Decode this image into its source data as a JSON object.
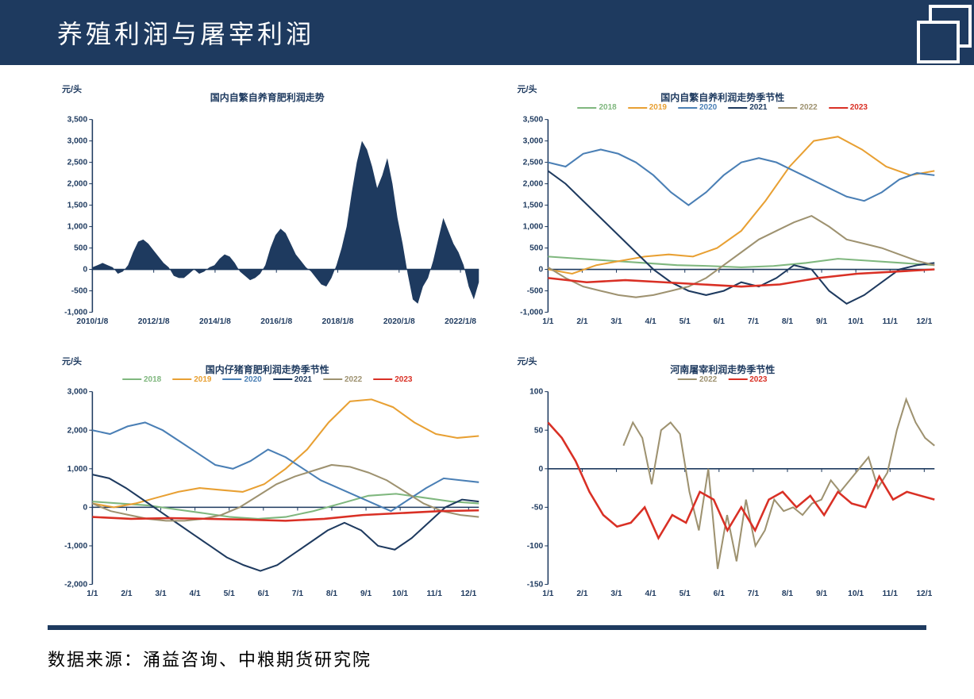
{
  "header": {
    "title": "养殖利润与屠宰利润"
  },
  "footer": {
    "source": "数据来源：涌益咨询、中粮期货研究院"
  },
  "colors": {
    "navy": "#1e3a5f",
    "y2018": "#7fb77e",
    "y2019": "#e8a033",
    "y2020": "#4a7fb5",
    "y2021": "#1e3a5f",
    "y2022": "#9e9270",
    "y2023": "#d93025"
  },
  "chart1": {
    "title": "国内自繁自养育肥利润走势",
    "ylabel": "元/头",
    "ylim": [
      -1000,
      3500
    ],
    "yticks": [
      -1000,
      -500,
      0,
      500,
      1000,
      1500,
      2000,
      2500,
      3000,
      3500
    ],
    "xlabels": [
      "2010/1/8",
      "2012/1/8",
      "2014/1/8",
      "2016/1/8",
      "2018/1/8",
      "2020/1/8",
      "2022/1/8"
    ],
    "type": "area",
    "color": "#1e3a5f",
    "data": [
      50,
      100,
      150,
      100,
      50,
      -100,
      -50,
      100,
      400,
      650,
      700,
      600,
      450,
      300,
      150,
      50,
      -150,
      -200,
      -200,
      -100,
      0,
      -100,
      -50,
      50,
      100,
      250,
      350,
      300,
      150,
      -50,
      -150,
      -250,
      -200,
      -100,
      100,
      500,
      800,
      950,
      850,
      600,
      350,
      200,
      50,
      -50,
      -200,
      -350,
      -400,
      -200,
      100,
      500,
      1000,
      1800,
      2500,
      3000,
      2800,
      2400,
      1900,
      2200,
      2600,
      2000,
      1200,
      600,
      -100,
      -700,
      -800,
      -400,
      -200,
      200,
      700,
      1200,
      900,
      600,
      400,
      100,
      -400,
      -700,
      -300
    ]
  },
  "chart2": {
    "title": "国内自繁自养利润走势季节性",
    "ylabel": "元/头",
    "ylim": [
      -1000,
      3500
    ],
    "yticks": [
      -1000,
      -500,
      0,
      500,
      1000,
      1500,
      2000,
      2500,
      3000,
      3500
    ],
    "xlabels": [
      "1/1",
      "2/1",
      "3/1",
      "4/1",
      "5/1",
      "6/1",
      "7/1",
      "8/1",
      "9/1",
      "10/1",
      "11/1",
      "12/1"
    ],
    "type": "line",
    "legend": [
      "2018",
      "2019",
      "2020",
      "2021",
      "2022",
      "2023"
    ],
    "series": {
      "y2018": [
        300,
        250,
        200,
        150,
        100,
        80,
        50,
        80,
        150,
        250,
        200,
        150,
        100
      ],
      "y2019": [
        0,
        -100,
        100,
        200,
        300,
        350,
        300,
        500,
        900,
        1600,
        2400,
        3000,
        3100,
        2800,
        2400,
        2200,
        2300
      ],
      "y2020": [
        2500,
        2400,
        2700,
        2800,
        2700,
        2500,
        2200,
        1800,
        1500,
        1800,
        2200,
        2500,
        2600,
        2500,
        2300,
        2100,
        1900,
        1700,
        1600,
        1800,
        2100,
        2250,
        2200
      ],
      "y2021": [
        2300,
        2000,
        1600,
        1200,
        800,
        400,
        0,
        -300,
        -500,
        -600,
        -500,
        -300,
        -400,
        -200,
        100,
        0,
        -500,
        -800,
        -600,
        -300,
        0,
        100,
        150
      ],
      "y2022": [
        50,
        -200,
        -400,
        -500,
        -600,
        -650,
        -600,
        -500,
        -400,
        -200,
        100,
        400,
        700,
        900,
        1100,
        1250,
        1000,
        700,
        600,
        500,
        350,
        200,
        100
      ],
      "y2023": [
        -200,
        -300,
        -250,
        -300,
        -350,
        -400,
        -350,
        -200,
        -100,
        -50,
        0
      ]
    }
  },
  "chart3": {
    "title": "国内仔猪育肥利润走势季节性",
    "ylabel": "元/头",
    "ylim": [
      -2000,
      3000
    ],
    "yticks": [
      -2000,
      -1000,
      0,
      1000,
      2000,
      3000
    ],
    "xlabels": [
      "1/1",
      "2/1",
      "3/1",
      "4/1",
      "5/1",
      "6/1",
      "7/1",
      "8/1",
      "9/1",
      "10/1",
      "11/1",
      "12/1"
    ],
    "type": "line",
    "legend": [
      "2018",
      "2019",
      "2020",
      "2021",
      "2022",
      "2023"
    ],
    "series": {
      "y2018": [
        150,
        100,
        50,
        -50,
        -150,
        -250,
        -300,
        -250,
        -100,
        100,
        300,
        350,
        250,
        150,
        100
      ],
      "y2019": [
        100,
        0,
        100,
        250,
        400,
        500,
        450,
        400,
        600,
        1000,
        1500,
        2200,
        2750,
        2800,
        2600,
        2200,
        1900,
        1800,
        1850
      ],
      "y2020": [
        2000,
        1900,
        2100,
        2200,
        2000,
        1700,
        1400,
        1100,
        1000,
        1200,
        1500,
        1300,
        1000,
        700,
        500,
        300,
        100,
        -100,
        200,
        500,
        750,
        700,
        650
      ],
      "y2021": [
        850,
        750,
        500,
        200,
        -100,
        -400,
        -700,
        -1000,
        -1300,
        -1500,
        -1650,
        -1500,
        -1200,
        -900,
        -600,
        -400,
        -600,
        -1000,
        -1100,
        -800,
        -400,
        0,
        200,
        150
      ],
      "y2022": [
        100,
        -100,
        -200,
        -300,
        -350,
        -350,
        -300,
        -200,
        0,
        300,
        600,
        800,
        950,
        1100,
        1050,
        900,
        700,
        400,
        100,
        -100,
        -200,
        -250
      ],
      "y2023": [
        -250,
        -300,
        -280,
        -300,
        -320,
        -350,
        -300,
        -200,
        -150,
        -100,
        -80
      ]
    }
  },
  "chart4": {
    "title": "河南屠宰利润走势季节性",
    "ylabel": "元/头",
    "ylim": [
      -150,
      100
    ],
    "yticks": [
      -150,
      -100,
      -50,
      0,
      50,
      100
    ],
    "xlabels": [
      "1/1",
      "2/1",
      "3/1",
      "4/1",
      "5/1",
      "6/1",
      "7/1",
      "8/1",
      "9/1",
      "10/1",
      "11/1",
      "12/1"
    ],
    "type": "line",
    "legend": [
      "2022",
      "2023"
    ],
    "series": {
      "y2022": [
        null,
        null,
        null,
        null,
        null,
        null,
        null,
        null,
        30,
        60,
        40,
        -20,
        50,
        60,
        45,
        -30,
        -80,
        0,
        -130,
        -60,
        -120,
        -40,
        -100,
        -80,
        -40,
        -55,
        -50,
        -60,
        -45,
        -40,
        -15,
        -30,
        -15,
        0,
        15,
        -25,
        -5,
        50,
        90,
        60,
        40,
        30
      ],
      "y2023": [
        60,
        40,
        10,
        -30,
        -60,
        -75,
        -70,
        -50,
        -90,
        -60,
        -70,
        -30,
        -40,
        -80,
        -50,
        -80,
        -40,
        -30,
        -50,
        -35,
        -60,
        -30,
        -45,
        -50,
        -10,
        -40,
        -30,
        -35,
        -40
      ]
    }
  }
}
